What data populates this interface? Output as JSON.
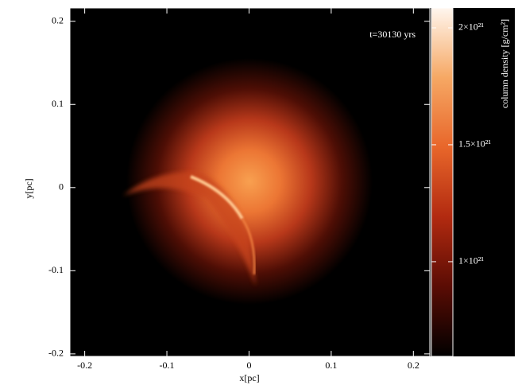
{
  "chart_data": {
    "type": "heatmap",
    "annotation": "t=30130 yrs",
    "xlabel": "x[pc]",
    "ylabel": "y[pc]",
    "xlim": [
      -0.218,
      0.22
    ],
    "xticks": [
      -0.2,
      -0.1,
      0,
      0.1,
      0.2
    ],
    "ylim": [
      -0.203,
      0.216
    ],
    "yticks": [
      -0.2,
      -0.1,
      0,
      0.1,
      0.2
    ],
    "colorbar_label": "column density [g/cm²]",
    "clim": [
      5.95e+20,
      2.085e+21
    ],
    "cticks": [
      {
        "value": 1e+21,
        "label": "1×10²¹"
      },
      {
        "value": 1.5e+21,
        "label": "1.5×10²¹"
      },
      {
        "value": 2e+21,
        "label": "2×10²¹"
      }
    ],
    "colors": [
      "#000000",
      "#5a0c04",
      "#b22a10",
      "#e8662a",
      "#f6a864",
      "#fff6ee"
    ]
  }
}
